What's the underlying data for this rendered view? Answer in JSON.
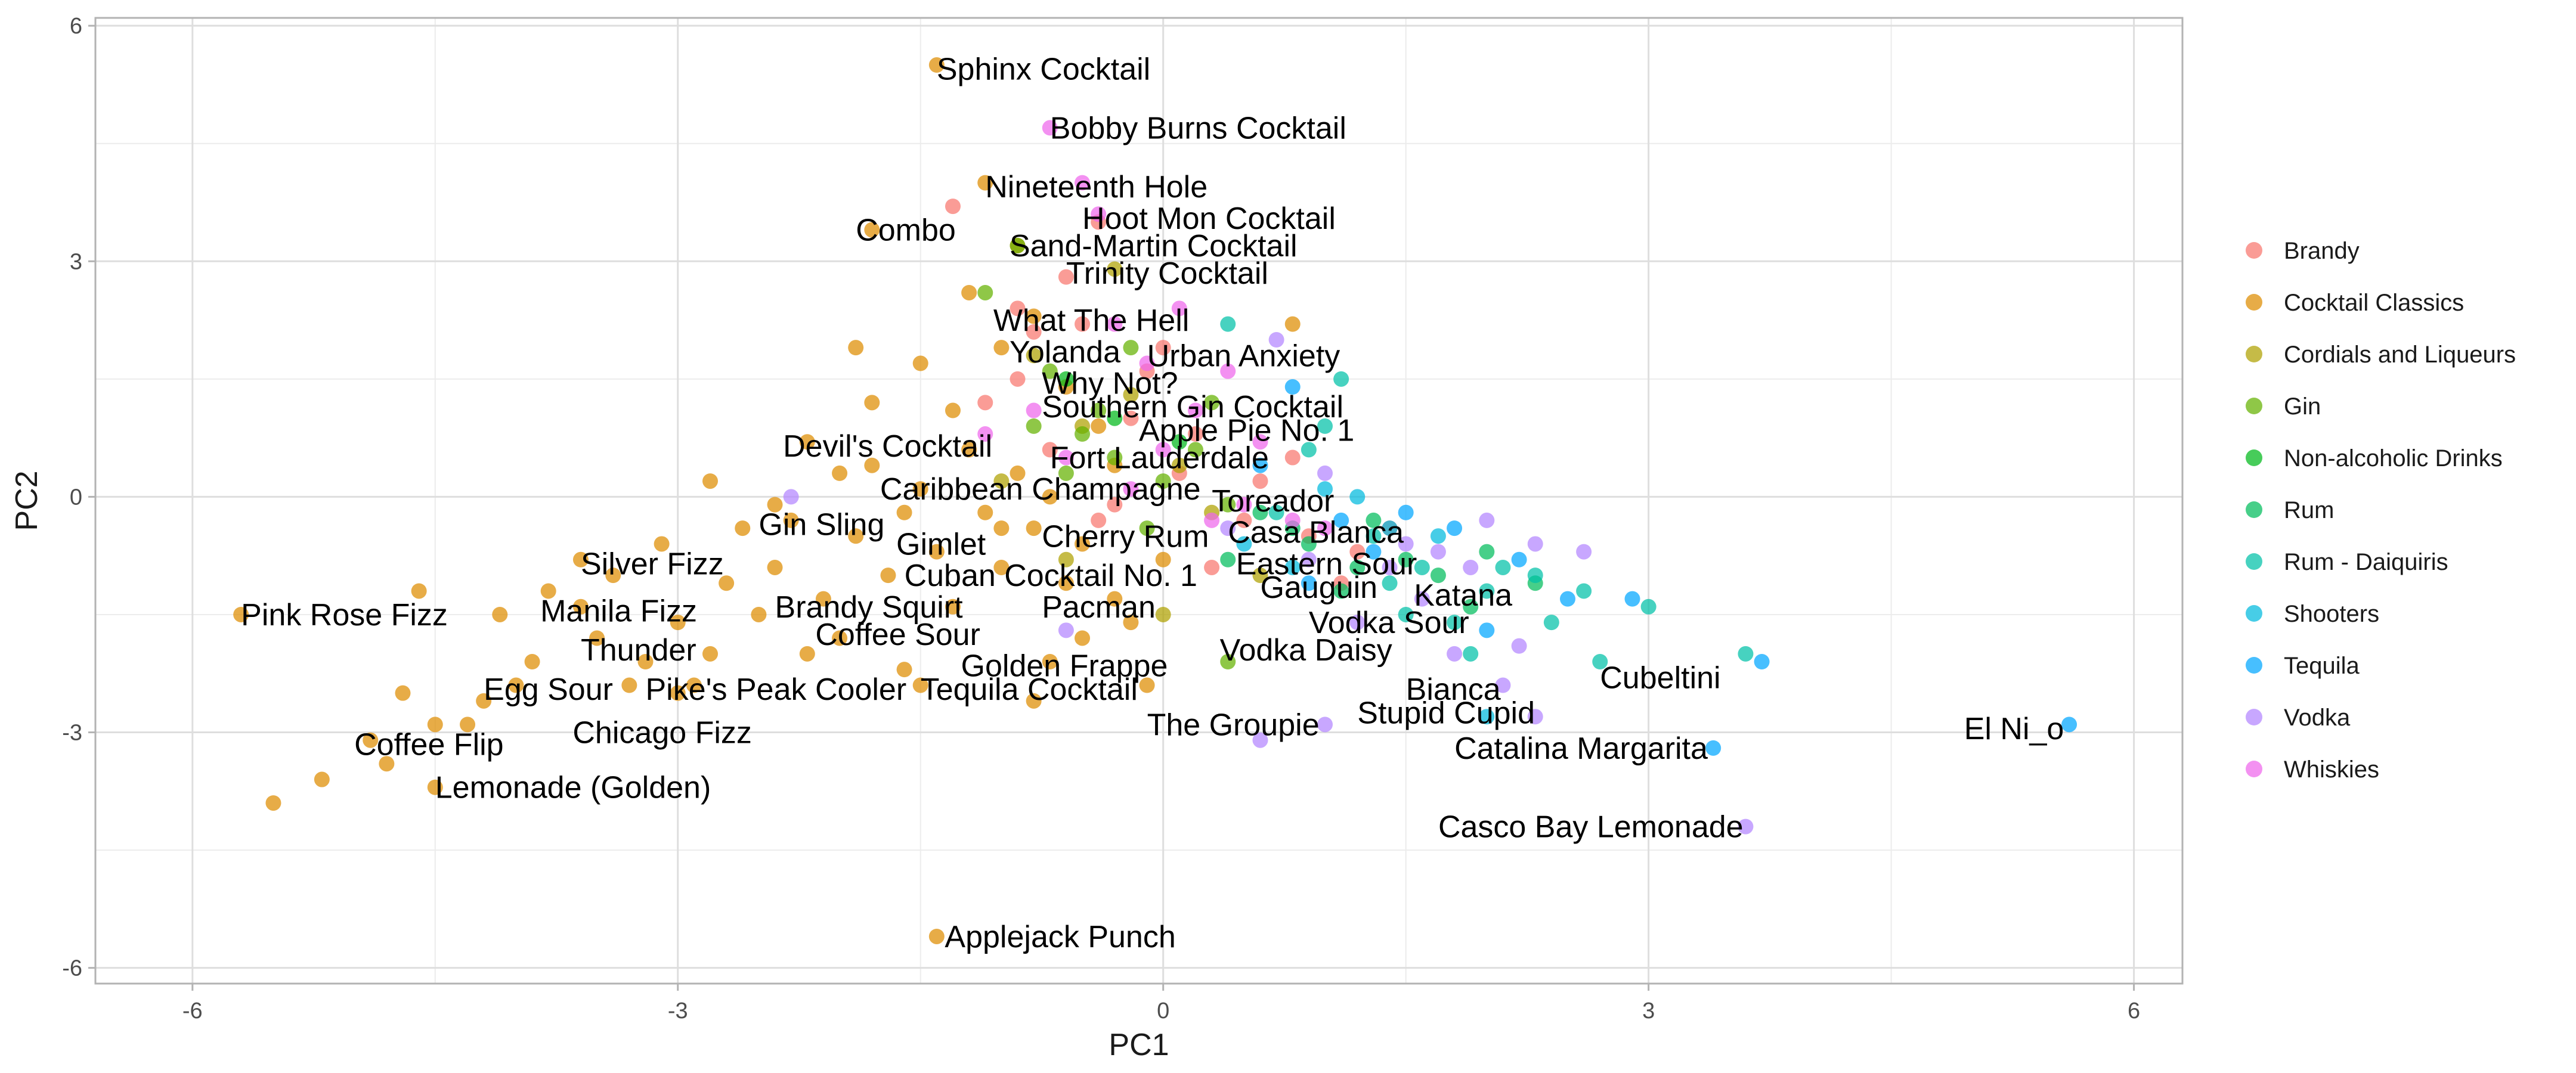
{
  "chart_data": {
    "type": "scatter",
    "xlabel": "PC1",
    "ylabel": "PC2",
    "xlim": [
      -6.6,
      6.3
    ],
    "ylim": [
      -6.2,
      6.1
    ],
    "x_ticks": [
      -6,
      -3,
      0,
      3,
      6
    ],
    "y_ticks": [
      -6,
      -3,
      0,
      3,
      6
    ],
    "x_tick_labels": [
      "-6",
      "-3",
      "0",
      "3",
      "6"
    ],
    "y_tick_labels": [
      "-6",
      "-3",
      "0",
      "3",
      "6"
    ],
    "grid": true,
    "legend_position": "right",
    "legend_entries": [
      "Brandy",
      "Cocktail Classics",
      "Cordials and Liqueurs",
      "Gin",
      "Non-alcoholic Drinks",
      "Rum",
      "Rum - Daiquiris",
      "Shooters",
      "Tequila",
      "Vodka",
      "Whiskies"
    ],
    "series": [
      {
        "name": "Brandy",
        "color": "#F8766D",
        "points": [
          [
            -0.4,
            3.5
          ],
          [
            -0.8,
            2.1
          ],
          [
            -1.3,
            3.7
          ],
          [
            -0.9,
            1.5
          ],
          [
            -0.5,
            2.2
          ],
          [
            -0.2,
            1.0
          ],
          [
            0.1,
            0.3
          ],
          [
            0.5,
            -0.3
          ],
          [
            0.9,
            -0.5
          ],
          [
            1.1,
            -1.1
          ],
          [
            -0.7,
            0.6
          ],
          [
            -1.1,
            1.2
          ],
          [
            -0.3,
            -0.1
          ],
          [
            0.2,
            0.8
          ],
          [
            -0.6,
            2.8
          ],
          [
            0.6,
            0.2
          ],
          [
            1.4,
            -0.4
          ],
          [
            -0.1,
            1.6
          ],
          [
            0.3,
            -0.9
          ],
          [
            -0.9,
            2.4
          ],
          [
            0.8,
            0.5
          ],
          [
            1.2,
            -0.7
          ],
          [
            -0.4,
            -0.3
          ],
          [
            0.0,
            1.9
          ]
        ]
      },
      {
        "name": "Cocktail Classics",
        "color": "#DE8C00",
        "points": [
          [
            -1.4,
            5.5
          ],
          [
            -1.1,
            4.0
          ],
          [
            -1.8,
            3.4
          ],
          [
            -0.9,
            3.2
          ],
          [
            -1.4,
            -5.6
          ],
          [
            -5.7,
            -1.5
          ],
          [
            -5.5,
            -3.9
          ],
          [
            -5.2,
            -3.6
          ],
          [
            -4.9,
            -3.1
          ],
          [
            -4.8,
            -3.4
          ],
          [
            -4.5,
            -3.7
          ],
          [
            -4.5,
            -2.9
          ],
          [
            -4.3,
            -2.9
          ],
          [
            -4.2,
            -2.6
          ],
          [
            -4.0,
            -2.4
          ],
          [
            -3.9,
            -2.1
          ],
          [
            -3.6,
            -1.4
          ],
          [
            -3.5,
            -1.8
          ],
          [
            -3.4,
            -1.0
          ],
          [
            -3.3,
            -2.4
          ],
          [
            -3.2,
            -2.1
          ],
          [
            -3.1,
            -0.6
          ],
          [
            -3.0,
            -1.6
          ],
          [
            -2.9,
            -2.4
          ],
          [
            -2.8,
            -2.0
          ],
          [
            -2.7,
            -1.1
          ],
          [
            -2.6,
            -0.4
          ],
          [
            -2.5,
            -1.5
          ],
          [
            -2.4,
            -0.9
          ],
          [
            -2.3,
            -0.3
          ],
          [
            -2.2,
            0.7
          ],
          [
            -2.1,
            -1.3
          ],
          [
            -2.0,
            -1.8
          ],
          [
            -1.9,
            -0.5
          ],
          [
            -1.8,
            0.4
          ],
          [
            -1.7,
            -1.0
          ],
          [
            -1.6,
            -2.2
          ],
          [
            -1.5,
            -2.4
          ],
          [
            -1.5,
            0.1
          ],
          [
            -1.4,
            -0.7
          ],
          [
            -1.3,
            1.1
          ],
          [
            -1.3,
            -1.4
          ],
          [
            -1.2,
            0.6
          ],
          [
            -1.1,
            -0.2
          ],
          [
            -1.0,
            -0.9
          ],
          [
            -1.0,
            1.9
          ],
          [
            -0.9,
            0.3
          ],
          [
            -0.8,
            -0.4
          ],
          [
            -0.8,
            2.3
          ],
          [
            -0.7,
            -2.1
          ],
          [
            -0.6,
            -1.1
          ],
          [
            -0.5,
            -0.6
          ],
          [
            -0.4,
            0.9
          ],
          [
            -0.3,
            -1.3
          ],
          [
            -0.2,
            -1.6
          ],
          [
            -0.1,
            -2.4
          ],
          [
            0.0,
            -0.8
          ],
          [
            -0.6,
            1.4
          ],
          [
            -1.9,
            1.9
          ],
          [
            -1.5,
            1.7
          ],
          [
            -1.2,
            2.6
          ],
          [
            -2.8,
            0.2
          ],
          [
            -2.4,
            -0.1
          ],
          [
            -2.0,
            0.3
          ],
          [
            -3.6,
            -0.8
          ],
          [
            -3.8,
            -1.2
          ],
          [
            -4.6,
            -1.2
          ],
          [
            -4.1,
            -1.5
          ],
          [
            -4.7,
            -2.5
          ],
          [
            -1.0,
            -0.4
          ],
          [
            -0.7,
            0.0
          ],
          [
            -0.3,
            0.4
          ],
          [
            0.8,
            2.2
          ],
          [
            -0.8,
            -2.6
          ],
          [
            -1.6,
            -0.2
          ],
          [
            -2.2,
            -2.0
          ],
          [
            -3.0,
            -2.5
          ],
          [
            -1.8,
            1.2
          ],
          [
            -0.5,
            -1.8
          ]
        ]
      },
      {
        "name": "Cordials and Liqueurs",
        "color": "#AFA100",
        "points": [
          [
            -0.3,
            2.9
          ],
          [
            -0.5,
            0.9
          ],
          [
            0.1,
            0.4
          ],
          [
            -0.8,
            1.8
          ],
          [
            0.3,
            -0.2
          ],
          [
            -0.2,
            1.3
          ],
          [
            -0.6,
            -0.8
          ],
          [
            0.6,
            -1.0
          ],
          [
            -1.0,
            0.2
          ],
          [
            0.0,
            -1.5
          ]
        ]
      },
      {
        "name": "Gin",
        "color": "#64B200",
        "points": [
          [
            -1.1,
            2.6
          ],
          [
            -0.9,
            3.2
          ],
          [
            -0.7,
            1.6
          ],
          [
            -0.5,
            0.8
          ],
          [
            -0.4,
            1.1
          ],
          [
            -0.3,
            0.5
          ],
          [
            -0.2,
            1.9
          ],
          [
            0.0,
            0.2
          ],
          [
            0.2,
            0.6
          ],
          [
            0.4,
            -0.1
          ],
          [
            0.4,
            -2.1
          ],
          [
            -0.6,
            0.3
          ],
          [
            -0.8,
            0.9
          ],
          [
            -0.1,
            -0.4
          ],
          [
            0.3,
            1.2
          ]
        ]
      },
      {
        "name": "Non-alcoholic Drinks",
        "color": "#00B81B",
        "points": [
          [
            -0.6,
            1.5
          ],
          [
            -0.3,
            1.0
          ],
          [
            0.1,
            0.7
          ]
        ]
      },
      {
        "name": "Rum",
        "color": "#00BD5C",
        "points": [
          [
            0.4,
            -0.8
          ],
          [
            0.9,
            -0.6
          ],
          [
            1.3,
            -0.3
          ],
          [
            1.7,
            -1.0
          ],
          [
            2.0,
            -0.7
          ],
          [
            0.6,
            -0.2
          ],
          [
            1.1,
            -1.2
          ],
          [
            1.5,
            -0.8
          ],
          [
            2.3,
            -1.1
          ],
          [
            0.8,
            -0.4
          ],
          [
            1.9,
            -1.4
          ],
          [
            1.2,
            -0.9
          ]
        ]
      },
      {
        "name": "Rum - Daiquiris",
        "color": "#00C1A7",
        "points": [
          [
            0.4,
            2.2
          ],
          [
            1.1,
            1.5
          ],
          [
            1.0,
            0.9
          ],
          [
            0.9,
            0.6
          ],
          [
            1.3,
            -0.5
          ],
          [
            1.6,
            -0.9
          ],
          [
            2.0,
            -1.2
          ],
          [
            2.3,
            -1.0
          ],
          [
            2.6,
            -1.2
          ],
          [
            2.7,
            -2.1
          ],
          [
            3.0,
            -1.4
          ],
          [
            3.6,
            -2.0
          ],
          [
            1.5,
            -1.5
          ],
          [
            1.8,
            -1.6
          ],
          [
            2.1,
            -0.9
          ],
          [
            0.7,
            -0.2
          ],
          [
            1.4,
            -1.1
          ],
          [
            1.9,
            -2.0
          ],
          [
            2.4,
            -1.6
          ]
        ]
      },
      {
        "name": "Shooters",
        "color": "#00BADE",
        "points": [
          [
            1.0,
            0.1
          ],
          [
            1.4,
            -0.4
          ],
          [
            0.5,
            -0.6
          ],
          [
            1.7,
            -0.5
          ],
          [
            0.8,
            -0.9
          ],
          [
            1.2,
            0.0
          ],
          [
            2.0,
            -2.8
          ]
        ]
      },
      {
        "name": "Tequila",
        "color": "#00A6FF",
        "points": [
          [
            0.8,
            1.4
          ],
          [
            0.6,
            0.4
          ],
          [
            1.3,
            -0.7
          ],
          [
            1.8,
            -0.4
          ],
          [
            2.2,
            -0.8
          ],
          [
            2.5,
            -1.3
          ],
          [
            3.4,
            -3.2
          ],
          [
            3.7,
            -2.1
          ],
          [
            5.6,
            -2.9
          ],
          [
            0.9,
            -1.1
          ],
          [
            1.5,
            -0.2
          ],
          [
            2.9,
            -1.3
          ],
          [
            1.1,
            -0.3
          ],
          [
            2.0,
            -1.7
          ]
        ]
      },
      {
        "name": "Vodka",
        "color": "#B385FF",
        "points": [
          [
            0.7,
            2.0
          ],
          [
            1.0,
            0.3
          ],
          [
            1.5,
            -0.6
          ],
          [
            1.9,
            -0.9
          ],
          [
            2.3,
            -0.6
          ],
          [
            2.6,
            -0.7
          ],
          [
            3.6,
            -4.2
          ],
          [
            2.1,
            -2.4
          ],
          [
            2.3,
            -2.8
          ],
          [
            1.0,
            -2.9
          ],
          [
            0.6,
            -3.1
          ],
          [
            -0.6,
            -1.7
          ],
          [
            1.8,
            -2.0
          ],
          [
            1.2,
            -1.6
          ],
          [
            0.4,
            -0.4
          ],
          [
            1.6,
            -1.3
          ],
          [
            2.0,
            -0.3
          ],
          [
            0.9,
            -0.8
          ],
          [
            1.4,
            -0.9
          ],
          [
            -2.3,
            0.0
          ],
          [
            2.2,
            -1.9
          ],
          [
            1.7,
            -0.7
          ]
        ]
      },
      {
        "name": "Whiskies",
        "color": "#EF67EB",
        "points": [
          [
            -0.7,
            4.7
          ],
          [
            -0.5,
            4.0
          ],
          [
            -0.4,
            3.6
          ],
          [
            -0.3,
            2.2
          ],
          [
            -0.1,
            1.7
          ],
          [
            0.0,
            0.6
          ],
          [
            0.2,
            1.1
          ],
          [
            0.3,
            -0.3
          ],
          [
            0.5,
            -0.1
          ],
          [
            -0.8,
            1.1
          ],
          [
            -1.1,
            0.8
          ],
          [
            0.1,
            2.4
          ],
          [
            0.6,
            0.7
          ],
          [
            -0.2,
            0.1
          ],
          [
            0.8,
            -0.3
          ],
          [
            -0.6,
            0.5
          ],
          [
            1.0,
            -0.4
          ],
          [
            0.4,
            1.6
          ]
        ]
      }
    ],
    "labels": [
      {
        "text": "Sphinx Cocktail",
        "x": -1.4,
        "y": 5.45
      },
      {
        "text": "Bobby Burns Cocktail",
        "x": -0.7,
        "y": 4.7
      },
      {
        "text": "Nineteenth Hole",
        "x": -1.1,
        "y": 3.95
      },
      {
        "text": "Combo",
        "x": -1.9,
        "y": 3.4
      },
      {
        "text": "Hoot Mon Cocktail",
        "x": -0.5,
        "y": 3.55
      },
      {
        "text": "Sand-Martin Cocktail",
        "x": -0.95,
        "y": 3.2
      },
      {
        "text": "Trinity Cocktail",
        "x": -0.6,
        "y": 2.85
      },
      {
        "text": "What The Hell",
        "x": -1.05,
        "y": 2.25
      },
      {
        "text": "Yolanda",
        "x": -0.95,
        "y": 1.85
      },
      {
        "text": "Urban Anxiety",
        "x": -0.1,
        "y": 1.8
      },
      {
        "text": "Why Not?",
        "x": -0.75,
        "y": 1.45
      },
      {
        "text": "Southern Gin Cocktail",
        "x": -0.75,
        "y": 1.15
      },
      {
        "text": "Apple Pie No. 1",
        "x": -0.15,
        "y": 0.85
      },
      {
        "text": "Devil's Cocktail",
        "x": -2.35,
        "y": 0.65
      },
      {
        "text": "Fort Lauderdale",
        "x": -0.7,
        "y": 0.5
      },
      {
        "text": "Caribbean Champagne",
        "x": -1.75,
        "y": 0.1
      },
      {
        "text": "Toreador",
        "x": 0.3,
        "y": -0.05
      },
      {
        "text": "Gin Sling",
        "x": -2.5,
        "y": -0.35
      },
      {
        "text": "Gimlet",
        "x": -1.65,
        "y": -0.6
      },
      {
        "text": "Cherry Rum",
        "x": -0.75,
        "y": -0.5
      },
      {
        "text": "Casa Blanca",
        "x": 0.4,
        "y": -0.45
      },
      {
        "text": "Silver Fizz",
        "x": -3.6,
        "y": -0.85
      },
      {
        "text": "Eastern Sour",
        "x": 0.45,
        "y": -0.85
      },
      {
        "text": "Cuban Cocktail No. 1",
        "x": -1.6,
        "y": -1.0
      },
      {
        "text": "Gauguin",
        "x": 0.6,
        "y": -1.15
      },
      {
        "text": "Katana",
        "x": 1.55,
        "y": -1.25
      },
      {
        "text": "Pink Rose Fizz",
        "x": -5.7,
        "y": -1.5
      },
      {
        "text": "Manila Fizz",
        "x": -3.85,
        "y": -1.45
      },
      {
        "text": "Brandy Squirt",
        "x": -2.4,
        "y": -1.4
      },
      {
        "text": "Pacman",
        "x": -0.75,
        "y": -1.4
      },
      {
        "text": "Vodka Sour",
        "x": 0.9,
        "y": -1.6
      },
      {
        "text": "Coffee Sour",
        "x": -2.15,
        "y": -1.75
      },
      {
        "text": "Thunder",
        "x": -3.6,
        "y": -1.95
      },
      {
        "text": "Vodka Daisy",
        "x": 0.35,
        "y": -1.95
      },
      {
        "text": "Golden Frappe",
        "x": -1.25,
        "y": -2.15
      },
      {
        "text": "Cubeltini",
        "x": 2.7,
        "y": -2.3
      },
      {
        "text": "Egg Sour",
        "x": -4.2,
        "y": -2.45
      },
      {
        "text": "Pike's Peak Cooler",
        "x": -3.2,
        "y": -2.45
      },
      {
        "text": "Tequila Cocktail",
        "x": -1.5,
        "y": -2.45
      },
      {
        "text": "Bianca",
        "x": 1.5,
        "y": -2.45
      },
      {
        "text": "Stupid Cupid",
        "x": 1.2,
        "y": -2.75
      },
      {
        "text": "Chicago Fizz",
        "x": -3.65,
        "y": -3.0
      },
      {
        "text": "The Groupie",
        "x": -0.1,
        "y": -2.9
      },
      {
        "text": "El Ni_o",
        "x": 4.95,
        "y": -2.95
      },
      {
        "text": "Coffee Flip",
        "x": -5.0,
        "y": -3.15
      },
      {
        "text": "Catalina Margarita",
        "x": 1.8,
        "y": -3.2
      },
      {
        "text": "Lemonade (Golden)",
        "x": -4.5,
        "y": -3.7
      },
      {
        "text": "Casco Bay Lemonade",
        "x": 1.7,
        "y": -4.2
      },
      {
        "text": "Applejack Punch",
        "x": -1.35,
        "y": -5.6
      }
    ]
  }
}
